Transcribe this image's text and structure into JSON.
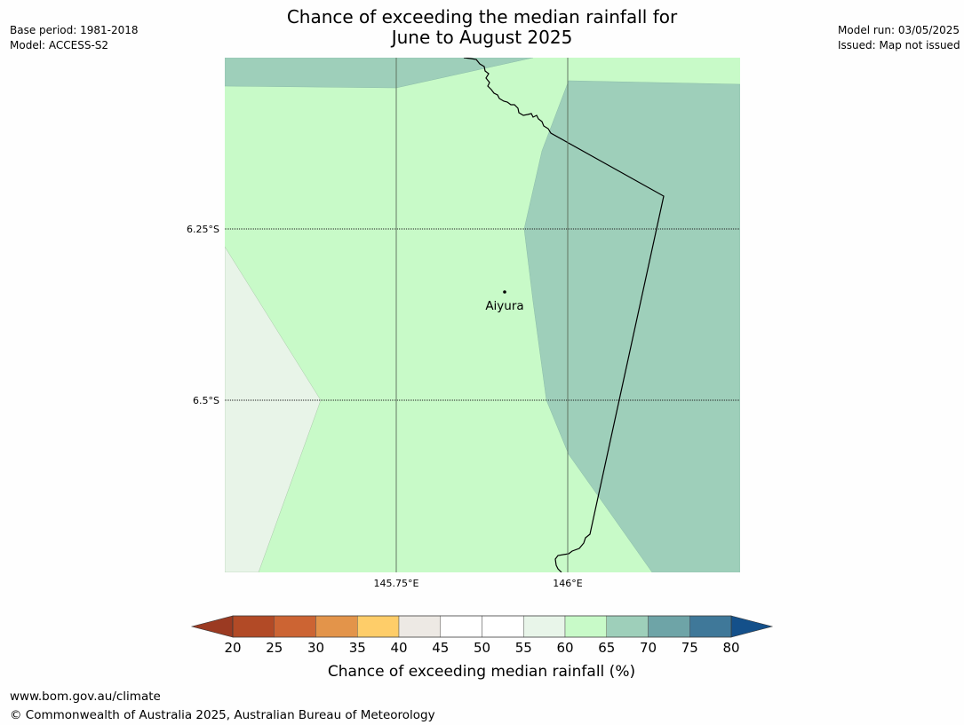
{
  "header": {
    "title_line1": "Chance of exceeding the median rainfall for",
    "title_line2": "June to August 2025",
    "base_period": "Base period: 1981-2018",
    "model": "Model: ACCESS-S2",
    "model_run": "Model run: 03/05/2025",
    "issued": "Issued: Map not issued"
  },
  "map": {
    "place_label": "Aiyura",
    "lat_labels": [
      "6.25°S",
      "6.5°S"
    ],
    "lon_labels": [
      "145.75°E",
      "146°E"
    ],
    "region_colors": {
      "60-65": "#c8fac8",
      "65-70": "#9ecfba",
      "55-60": "#e8f4e8"
    }
  },
  "colorbar": {
    "label": "Chance of exceeding median rainfall (%)",
    "ticks": [
      "20",
      "25",
      "30",
      "35",
      "40",
      "45",
      "50",
      "55",
      "60",
      "65",
      "70",
      "75",
      "80"
    ],
    "colors": [
      "#b24a26",
      "#cc6433",
      "#e3944a",
      "#fecd69",
      "#ede9e4",
      "#ffffff",
      "#ffffff",
      "#e8f5e9",
      "#c8fac8",
      "#9ecfba",
      "#6ea4a7",
      "#3f7899"
    ],
    "low_extend_color": "#9b3a22",
    "high_extend_color": "#14508a"
  },
  "footer": {
    "url": "www.bom.gov.au/climate",
    "copyright": "© Commonwealth of Australia 2025, Australian Bureau of Meteorology"
  }
}
